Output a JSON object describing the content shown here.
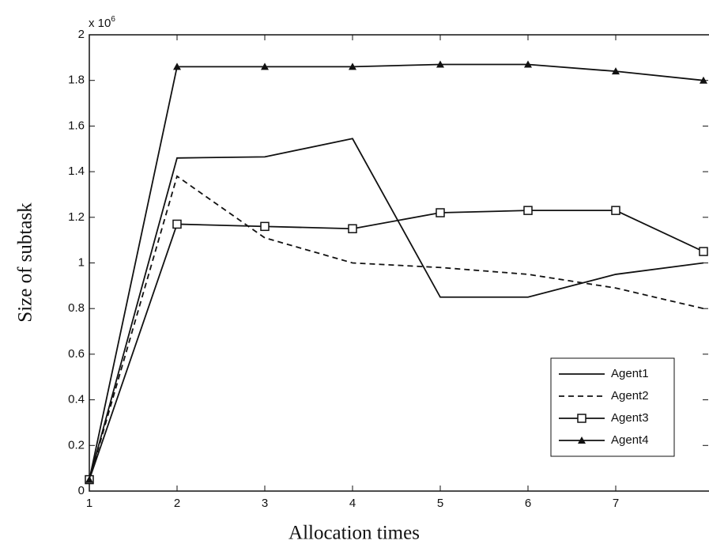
{
  "chart_data": {
    "type": "line",
    "x_label": "Allocation times",
    "y_label": "Size of subtask",
    "y_scale_label": {
      "base": "x 10",
      "power": "6"
    },
    "x": [
      1,
      2,
      3,
      4,
      5,
      6,
      7,
      8
    ],
    "xlim": [
      1,
      8
    ],
    "xticks": [
      1,
      2,
      3,
      4,
      5,
      6,
      7
    ],
    "ylim": [
      0,
      2
    ],
    "yticks": [
      0,
      0.2,
      0.4,
      0.6,
      0.8,
      1,
      1.2,
      1.4,
      1.6,
      1.8,
      2
    ],
    "legend": "lower right",
    "series": [
      {
        "name": "Agent1",
        "color": "#111111",
        "dash": "solid",
        "marker": "none",
        "values": [
          0.05,
          1.46,
          1.465,
          1.545,
          0.85,
          0.85,
          0.95,
          1.0
        ]
      },
      {
        "name": "Agent2",
        "color": "#111111",
        "dash": "dashed",
        "marker": "none",
        "values": [
          0.05,
          1.38,
          1.11,
          1.0,
          0.98,
          0.95,
          0.89,
          0.8
        ]
      },
      {
        "name": "Agent3",
        "color": "#111111",
        "dash": "solid",
        "marker": "square",
        "values": [
          0.05,
          1.17,
          1.16,
          1.15,
          1.22,
          1.23,
          1.23,
          1.05
        ]
      },
      {
        "name": "Agent4",
        "color": "#111111",
        "dash": "solid",
        "marker": "triangle",
        "values": [
          0.05,
          1.86,
          1.86,
          1.86,
          1.87,
          1.87,
          1.84,
          1.8
        ]
      }
    ]
  }
}
